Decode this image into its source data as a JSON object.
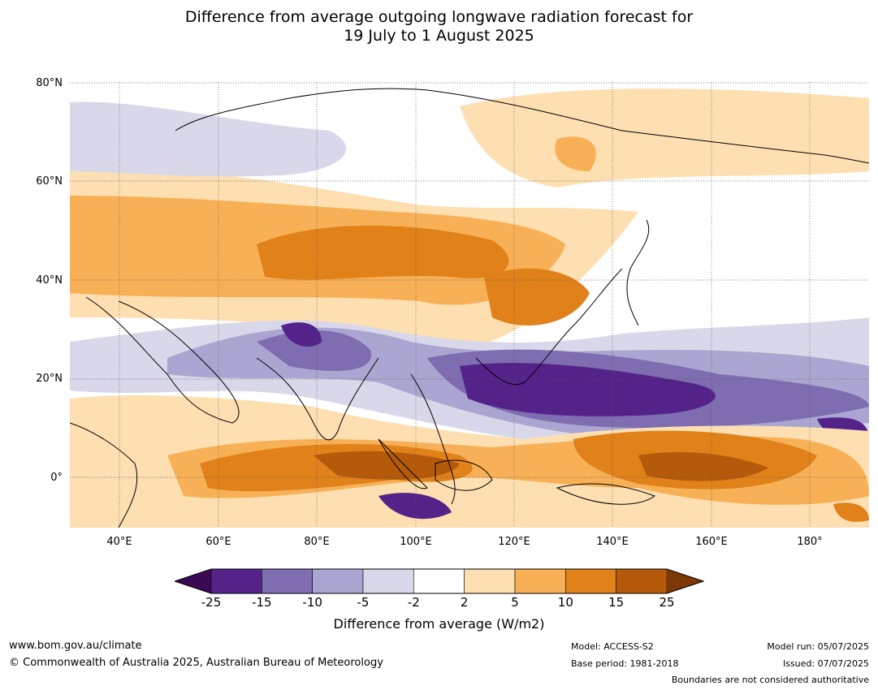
{
  "title": {
    "line1": "Difference from average outgoing longwave radiation forecast for",
    "line2": "19 July to 1 August 2025"
  },
  "map": {
    "lat_labels": [
      "80°N",
      "60°N",
      "40°N",
      "20°N",
      "0°"
    ],
    "lon_labels": [
      "40°E",
      "60°E",
      "80°E",
      "100°E",
      "120°E",
      "140°E",
      "160°E",
      "180°"
    ]
  },
  "colorbar": {
    "ticks": [
      "-25",
      "-15",
      "-10",
      "-5",
      "-2",
      "2",
      "5",
      "10",
      "15",
      "25"
    ],
    "colors": [
      "#3b0a55",
      "#54238a",
      "#7e6db0",
      "#aba6d1",
      "#d9d8ea",
      "#ffffff",
      "#fddfb2",
      "#f8b057",
      "#e0811a",
      "#b55a0b",
      "#7e3706"
    ],
    "label": "Difference from average (W/m2)"
  },
  "footer": {
    "url": "www.bom.gov.au/climate",
    "copyright": "© Commonwealth of Australia 2025, Australian Bureau of Meteorology",
    "model": "Model: ACCESS-S2",
    "base_period": "Base period: 1981-2018",
    "model_run": "Model run: 05/07/2025",
    "issued": "Issued: 07/07/2025",
    "boundaries": "Boundaries are not considered authoritative"
  }
}
